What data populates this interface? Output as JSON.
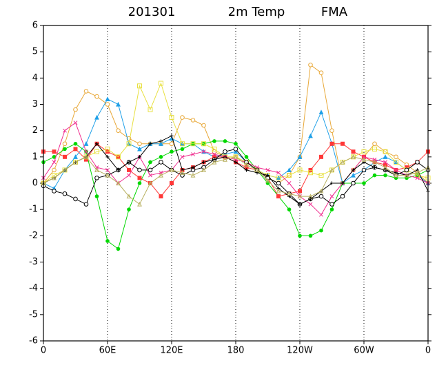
{
  "chart_data": {
    "type": "line",
    "title_parts": [
      "201301",
      "2m Temp",
      "FMA"
    ],
    "x": [
      0,
      10,
      20,
      30,
      40,
      50,
      60,
      70,
      80,
      90,
      100,
      110,
      120,
      130,
      140,
      150,
      160,
      170,
      180,
      190,
      200,
      210,
      220,
      230,
      240,
      250,
      260,
      270,
      280,
      290,
      300,
      310,
      320,
      330,
      340,
      350,
      360
    ],
    "xlim": [
      0,
      360
    ],
    "xticks": [
      0,
      {
        "value": 60,
        "label": "60E"
      },
      {
        "value": 120,
        "label": "120E"
      },
      180,
      {
        "value": 240,
        "label": "120W"
      },
      {
        "value": 300,
        "label": "60W"
      },
      {
        "value": 360,
        "label": "0"
      }
    ],
    "ylim": [
      -6,
      6
    ],
    "yticks": [
      -6,
      -5,
      -4,
      -3,
      -2,
      -1,
      0,
      1,
      2,
      3,
      4,
      5,
      6
    ],
    "grid": "x",
    "series": [
      {
        "color": "#e8a838",
        "marker": "circle-open",
        "values": [
          0,
          0.5,
          1.5,
          2.8,
          3.5,
          3.3,
          3,
          2,
          1.7,
          1.5,
          1.5,
          1.5,
          1.5,
          2.5,
          2.4,
          2.2,
          1.2,
          1,
          1,
          0.8,
          0.5,
          0.2,
          0,
          0.3,
          1,
          4.5,
          4.2,
          2,
          0,
          0.5,
          1,
          1.5,
          1.2,
          1,
          0.7,
          0.4,
          0
        ]
      },
      {
        "color": "#1fa0e8",
        "marker": "triangle",
        "values": [
          0,
          -0.2,
          0.5,
          1,
          1.5,
          2.5,
          3.2,
          3,
          1.5,
          1.3,
          1.5,
          1.5,
          1.7,
          1.5,
          1.5,
          1.2,
          1,
          1.1,
          1.2,
          0.8,
          0.5,
          0.3,
          0.2,
          0.5,
          1,
          1.8,
          2.7,
          1.5,
          0,
          0.3,
          0.5,
          0.8,
          1,
          0.8,
          0.5,
          0.3,
          0
        ]
      },
      {
        "color": "#00d800",
        "marker": "dot",
        "values": [
          0.8,
          1,
          1.3,
          1.5,
          1.2,
          -0.5,
          -2.2,
          -2.5,
          -1,
          0,
          0.8,
          1,
          1.2,
          1.3,
          1.5,
          1.5,
          1.6,
          1.6,
          1.5,
          1,
          0.5,
          0,
          -0.5,
          -1,
          -2,
          -2,
          -1.8,
          -1,
          0,
          0,
          0,
          0.3,
          0.3,
          0.2,
          0.2,
          0.3,
          0.5
        ]
      },
      {
        "color": "#ff3838",
        "marker": "square",
        "values": [
          1.2,
          1.2,
          1,
          1.3,
          0.9,
          1.5,
          1.2,
          1,
          0.5,
          0.2,
          0,
          -0.5,
          0,
          0.5,
          0.6,
          0.8,
          1,
          1,
          0.8,
          0.6,
          0.5,
          0.2,
          -0.5,
          -0.4,
          -0.3,
          0.5,
          1,
          1.5,
          1.5,
          1.2,
          1,
          0.8,
          0.7,
          0.5,
          0.6,
          0.8,
          1.2
        ]
      },
      {
        "color": "#e8e040",
        "marker": "square-open",
        "values": [
          0,
          0.3,
          0.5,
          0.8,
          1,
          1.2,
          1.3,
          1,
          1.5,
          3.7,
          2.8,
          3.8,
          2.5,
          1.5,
          1.5,
          1.5,
          1.3,
          1,
          1,
          0.8,
          0.5,
          0.3,
          0.2,
          0.3,
          0.5,
          0.4,
          0.3,
          0.5,
          0.8,
          1,
          1.2,
          1.3,
          1.2,
          0.8,
          0.5,
          0.3,
          0.2
        ]
      },
      {
        "color": "#f03090",
        "marker": "cross",
        "values": [
          0.2,
          0.8,
          2,
          2.3,
          1.2,
          0.6,
          0.5,
          0,
          0.3,
          1,
          0.3,
          0.4,
          0.5,
          1,
          1.1,
          1.2,
          1.1,
          1,
          0.9,
          0.8,
          0.6,
          0.5,
          0.4,
          0,
          -0.5,
          -0.8,
          -1.2,
          -0.5,
          0,
          0.5,
          1,
          0.9,
          0.8,
          0.5,
          0.3,
          0.2,
          0
        ]
      },
      {
        "color": "#000000",
        "marker": "circle-open",
        "values": [
          -0.1,
          -0.3,
          -0.4,
          -0.6,
          -0.8,
          0.2,
          0.3,
          0.5,
          0.8,
          0.5,
          0.5,
          0.8,
          0.5,
          0.3,
          0.5,
          0.6,
          0.9,
          1.2,
          1.3,
          0.8,
          0.5,
          0.2,
          0,
          -0.4,
          -0.8,
          -0.6,
          -0.5,
          -0.8,
          -0.5,
          0,
          0.5,
          0.6,
          0.5,
          0.3,
          0.5,
          0.8,
          0.5
        ]
      },
      {
        "color": "#000000",
        "marker": "plus",
        "values": [
          0,
          0.2,
          0.5,
          0.8,
          1,
          1.5,
          1,
          0.5,
          0.8,
          1,
          1.5,
          1.6,
          1.8,
          0.5,
          0.6,
          0.8,
          0.9,
          1,
          0.8,
          0.5,
          0.4,
          0.3,
          -0.2,
          -0.5,
          -0.8,
          -0.6,
          -0.3,
          0,
          0,
          0.5,
          0.8,
          0.6,
          0.5,
          0.4,
          0.3,
          0.5,
          -0.3
        ]
      },
      {
        "color": "#b8b060",
        "marker": "triangle-open",
        "values": [
          0,
          0.2,
          0.5,
          0.8,
          1,
          0.5,
          0.3,
          0,
          -0.5,
          -0.8,
          0,
          0.3,
          0.5,
          0.4,
          0.3,
          0.5,
          0.8,
          0.9,
          1,
          0.7,
          0.5,
          0.1,
          -0.3,
          -0.4,
          -0.5,
          -0.5,
          -0.3,
          0.5,
          0.8,
          1,
          0.9,
          0.8,
          0.6,
          0.3,
          0.3,
          0.4,
          0.6
        ]
      }
    ]
  }
}
